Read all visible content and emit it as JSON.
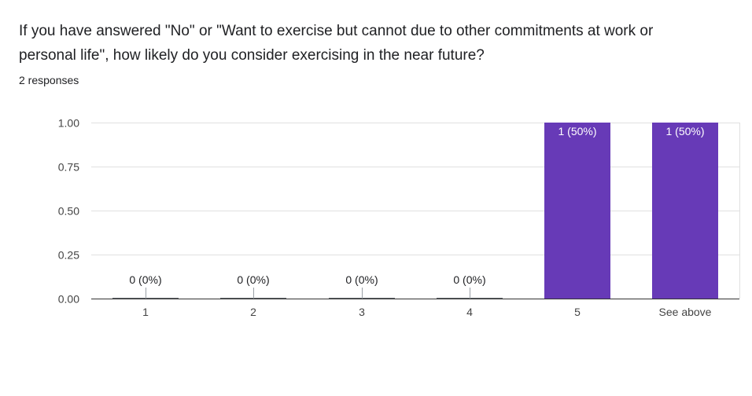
{
  "question": {
    "title": "If you have answered \"No\" or \"Want to exercise but cannot due to other commitments at work or personal life\", how likely do you consider exercising in the near future?",
    "response_count": "2 responses"
  },
  "colors": {
    "bar": "#673ab7",
    "bar_label_inside": "#ffffff",
    "text": "#202124",
    "axis_text": "#444444",
    "grid": "#e0e0e0",
    "baseline": "#333333"
  },
  "chart_data": {
    "type": "bar",
    "title": "",
    "xlabel": "",
    "ylabel": "",
    "categories": [
      "1",
      "2",
      "3",
      "4",
      "5",
      "See above"
    ],
    "values": [
      0,
      0,
      0,
      0,
      1,
      1
    ],
    "data_labels": [
      "0 (0%)",
      "0 (0%)",
      "0 (0%)",
      "0 (0%)",
      "1 (50%)",
      "1 (50%)"
    ],
    "ylim": [
      0,
      1
    ],
    "yticks": [
      0,
      0.25,
      0.5,
      0.75,
      1
    ],
    "ytick_labels": [
      "0.00",
      "0.25",
      "0.50",
      "0.75",
      "1.00"
    ],
    "grid": true,
    "legend": "none"
  }
}
